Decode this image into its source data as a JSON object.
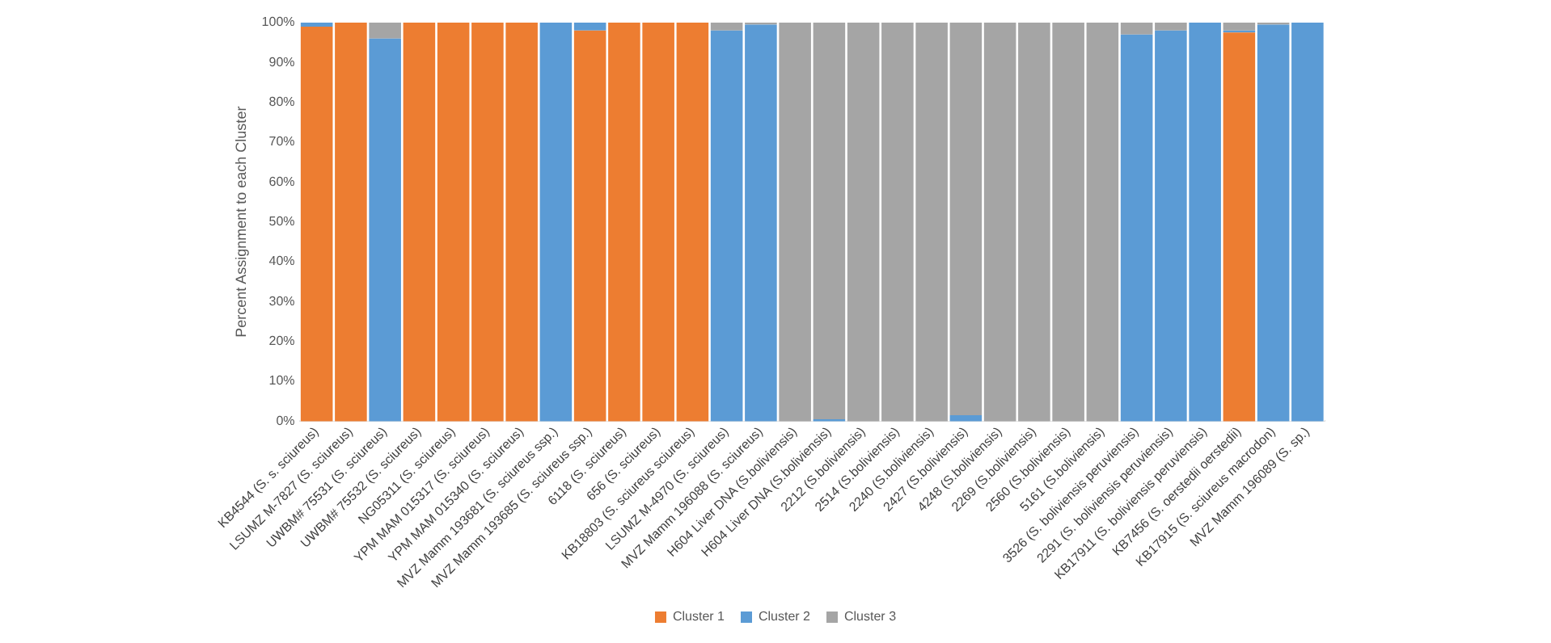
{
  "chart_data": {
    "type": "bar",
    "stacked": true,
    "ylabel": "Percent Assignment to each Cluster",
    "categories": [
      "KB4544 (S. s. sciureus)",
      "LSUMZ M-7827 (S. sciureus)",
      "UWBM# 75531 (S. sciureus)",
      "UWBM# 75532 (S. sciureus)",
      "NG05311 (S. sciureus)",
      "YPM MAM 015317 (S. sciureus)",
      "YPM MAM 015340 (S. sciureus)",
      "MVZ Mamm 193681 (S. sciureus ssp.)",
      "MVZ Mamm 193685 (S. sciureus ssp.)",
      "6118 (S. sciureus)",
      "656 (S. sciureus)",
      "KB18803 (S. sciureus sciureus)",
      "LSUMZ M-4970 (S. sciureus)",
      "MVZ Mamm 196088 (S. sciureus)",
      "H604 Liver DNA (S.boliviensis)",
      "H604 Liver DNA (S.boliviensis)",
      "2212 (S.boliviensis)",
      "2514 (S.boliviensis)",
      "2240 (S.boliviensis)",
      "2427 (S.boliviensis)",
      "4248 (S.boliviensis)",
      "2269 (S.boliviensis)",
      "2560 (S.boliviensis)",
      "5161 (S.boliviensis)",
      "3526 (S. boliviensis peruviensis)",
      "2291 (S. boliviensis peruviensis)",
      "KB17911 (S. boliviensis peruviensis)",
      "KB7456 (S. oerstedii oerstedii)",
      "KB17915 (S. sciureus macrodon)",
      "MVZ Mamm 196089 (S. sp.)"
    ],
    "series": [
      {
        "name": "Cluster 1",
        "color": "#ed7d31",
        "values": [
          99,
          100,
          0,
          100,
          100,
          100,
          100,
          0,
          98,
          100,
          100,
          100,
          0,
          0,
          0,
          0,
          0,
          0,
          0,
          0,
          0,
          0,
          0,
          0,
          0,
          0,
          0,
          97.5,
          0,
          0
        ]
      },
      {
        "name": "Cluster 2",
        "color": "#5b9bd5",
        "values": [
          1,
          0,
          96,
          0,
          0,
          0,
          0,
          100,
          2,
          0,
          0,
          0,
          98,
          99.5,
          0,
          0.5,
          0,
          0,
          0,
          1.5,
          0,
          0,
          0,
          0,
          97,
          98,
          100,
          0.5,
          99.5,
          100
        ]
      },
      {
        "name": "Cluster 3",
        "color": "#a5a5a5",
        "values": [
          0,
          0,
          4,
          0,
          0,
          0,
          0,
          0,
          0,
          0,
          0,
          0,
          2,
          0.5,
          100,
          99.5,
          100,
          100,
          100,
          98.5,
          100,
          100,
          100,
          100,
          3,
          2,
          0,
          2,
          0.5,
          0
        ]
      }
    ],
    "ylim": [
      0,
      100
    ],
    "yticks": [
      {
        "value": 0,
        "label": "0%"
      },
      {
        "value": 10,
        "label": "10%"
      },
      {
        "value": 20,
        "label": "20%"
      },
      {
        "value": 30,
        "label": "30%"
      },
      {
        "value": 40,
        "label": "40%"
      },
      {
        "value": 50,
        "label": "50%"
      },
      {
        "value": 60,
        "label": "60%"
      },
      {
        "value": 70,
        "label": "70%"
      },
      {
        "value": 80,
        "label": "80%"
      },
      {
        "value": 90,
        "label": "90%"
      },
      {
        "value": 100,
        "label": "100%"
      }
    ],
    "legend": "bottom"
  }
}
